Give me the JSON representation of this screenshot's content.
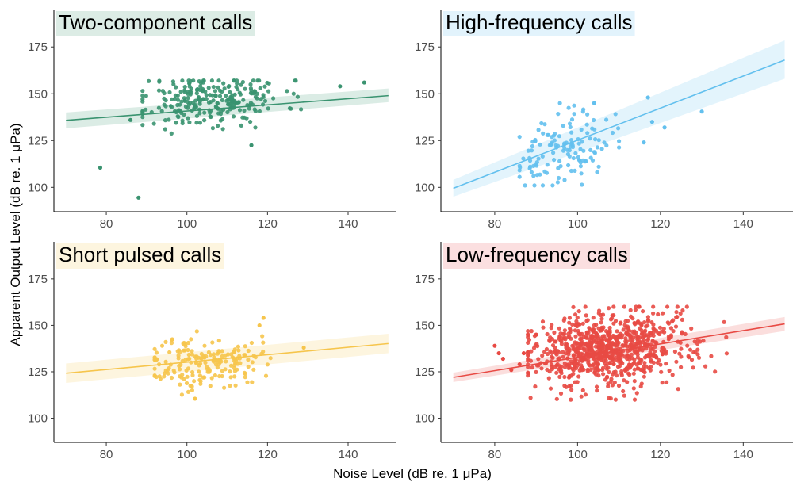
{
  "chart_data": {
    "type": "scatter",
    "xlabel": "Noise Level (dB re. 1 μPa)",
    "ylabel": "Apparent Output Level (dB re. 1 μPa)",
    "xlim": [
      67,
      152
    ],
    "ylim": [
      87,
      195
    ],
    "x_ticks": [
      80,
      100,
      120,
      140
    ],
    "y_ticks": [
      100,
      125,
      150,
      175
    ],
    "grid": false,
    "legend": "none",
    "panels": [
      {
        "title": "Two-component calls",
        "color": "#3a9370",
        "title_bg": "#dcece5",
        "fit": {
          "x": [
            70,
            150
          ],
          "y": [
            135.8,
            149.0
          ],
          "ci_lower": [
            131.5,
            145.5
          ],
          "ci_upper": [
            140.0,
            152.8
          ]
        },
        "points": {
          "n": 260,
          "seed": 11,
          "x_mean": 106,
          "x_sd": 9,
          "x_range": [
            89,
            130
          ],
          "y_mean": 147,
          "y_sd": 7,
          "y_range": [
            120,
            157
          ]
        },
        "extra_points": [
          [
            78.5,
            110.5
          ],
          [
            88,
            94.5
          ],
          [
            86,
            136
          ],
          [
            138,
            154
          ],
          [
            144,
            156
          ],
          [
            116,
            122.5
          ]
        ]
      },
      {
        "title": "High-frequency calls",
        "color": "#63c0ee",
        "title_bg": "#e2f3fc",
        "fit": {
          "x": [
            70,
            150
          ],
          "y": [
            99.5,
            168.0
          ],
          "ci_lower": [
            95.0,
            158.0
          ],
          "ci_upper": [
            104.0,
            178.5
          ]
        },
        "points": {
          "n": 135,
          "seed": 23,
          "x_mean": 96,
          "x_sd": 6,
          "x_range": [
            86,
            110
          ],
          "y_mean": 119,
          "y_sd": 9,
          "y_range": [
            101,
            145
          ]
        },
        "extra_points": [
          [
            117,
            148
          ],
          [
            118,
            135
          ],
          [
            121,
            132
          ],
          [
            116,
            124
          ],
          [
            130,
            140.5
          ],
          [
            104,
            145
          ]
        ]
      },
      {
        "title": "Short pulsed calls",
        "color": "#f6c54c",
        "title_bg": "#fdf5df",
        "fit": {
          "x": [
            70,
            150
          ],
          "y": [
            124.2,
            140.2
          ],
          "ci_lower": [
            119.0,
            135.0
          ],
          "ci_upper": [
            129.5,
            145.5
          ]
        },
        "points": {
          "n": 190,
          "seed": 37,
          "x_mean": 104,
          "x_sd": 7,
          "x_range": [
            92,
            125
          ],
          "y_mean": 130,
          "y_sd": 7,
          "y_range": [
            112,
            152
          ]
        },
        "extra_points": [
          [
            119,
            154
          ],
          [
            102,
            110.5
          ],
          [
            118,
            150
          ],
          [
            129,
            138
          ]
        ]
      },
      {
        "title": "Low-frequency calls",
        "color": "#e84a44",
        "title_bg": "#fbdfe0",
        "fit": {
          "x": [
            70,
            150
          ],
          "y": [
            122.0,
            150.8
          ],
          "ci_lower": [
            119.5,
            147.0
          ],
          "ci_upper": [
            124.5,
            154.5
          ]
        },
        "points": {
          "n": 850,
          "seed": 53,
          "x_mean": 108,
          "x_sd": 10,
          "x_range": [
            88,
            136
          ],
          "y_mean": 137,
          "y_sd": 10,
          "y_range": [
            110,
            160
          ]
        },
        "extra_points": [
          [
            80,
            139
          ],
          [
            81,
            135
          ],
          [
            82,
            132
          ],
          [
            84,
            126
          ],
          [
            86,
            129
          ],
          [
            90,
            145
          ],
          [
            87,
            135
          ]
        ]
      }
    ]
  }
}
